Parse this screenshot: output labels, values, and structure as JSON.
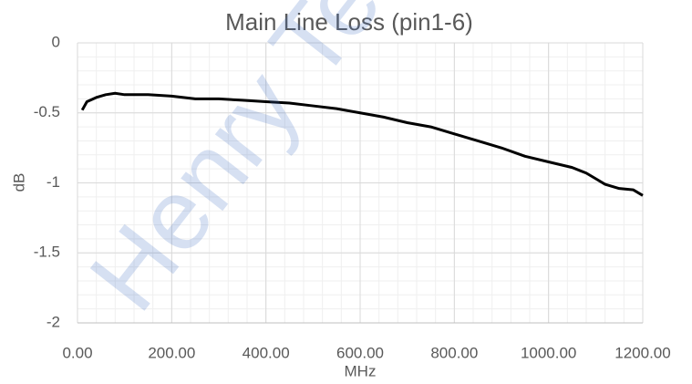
{
  "chart_data": {
    "type": "line",
    "title": "Main Line Loss (pin1-6)",
    "x_label": "MHz",
    "y_label": "dB",
    "watermark": "Henry Te",
    "x": [
      10,
      20,
      40,
      60,
      80,
      100,
      150,
      200,
      250,
      300,
      350,
      400,
      450,
      500,
      550,
      600,
      650,
      700,
      750,
      800,
      850,
      900,
      950,
      1000,
      1050,
      1080,
      1100,
      1120,
      1150,
      1180,
      1200
    ],
    "values": [
      -0.48,
      -0.42,
      -0.39,
      -0.37,
      -0.36,
      -0.37,
      -0.37,
      -0.38,
      -0.4,
      -0.4,
      -0.41,
      -0.42,
      -0.43,
      -0.45,
      -0.47,
      -0.5,
      -0.53,
      -0.57,
      -0.6,
      -0.65,
      -0.7,
      -0.75,
      -0.81,
      -0.85,
      -0.89,
      -0.93,
      -0.97,
      -1.01,
      -1.04,
      -1.05,
      -1.09
    ],
    "color": "#000000",
    "xlim": [
      0,
      1200
    ],
    "xticks": [
      {
        "value": 0,
        "label": "0.00"
      },
      {
        "value": 200,
        "label": "200.00"
      },
      {
        "value": 400,
        "label": "400.00"
      },
      {
        "value": 600,
        "label": "600.00"
      },
      {
        "value": 800,
        "label": "800.00"
      },
      {
        "value": 1000,
        "label": "1000.00"
      },
      {
        "value": 1200,
        "label": "1200.00"
      }
    ],
    "ylim": [
      -2,
      0
    ],
    "yticks": [
      0,
      -0.5,
      -1,
      -1.5,
      -2
    ],
    "grid": true,
    "minor_grid": true
  }
}
